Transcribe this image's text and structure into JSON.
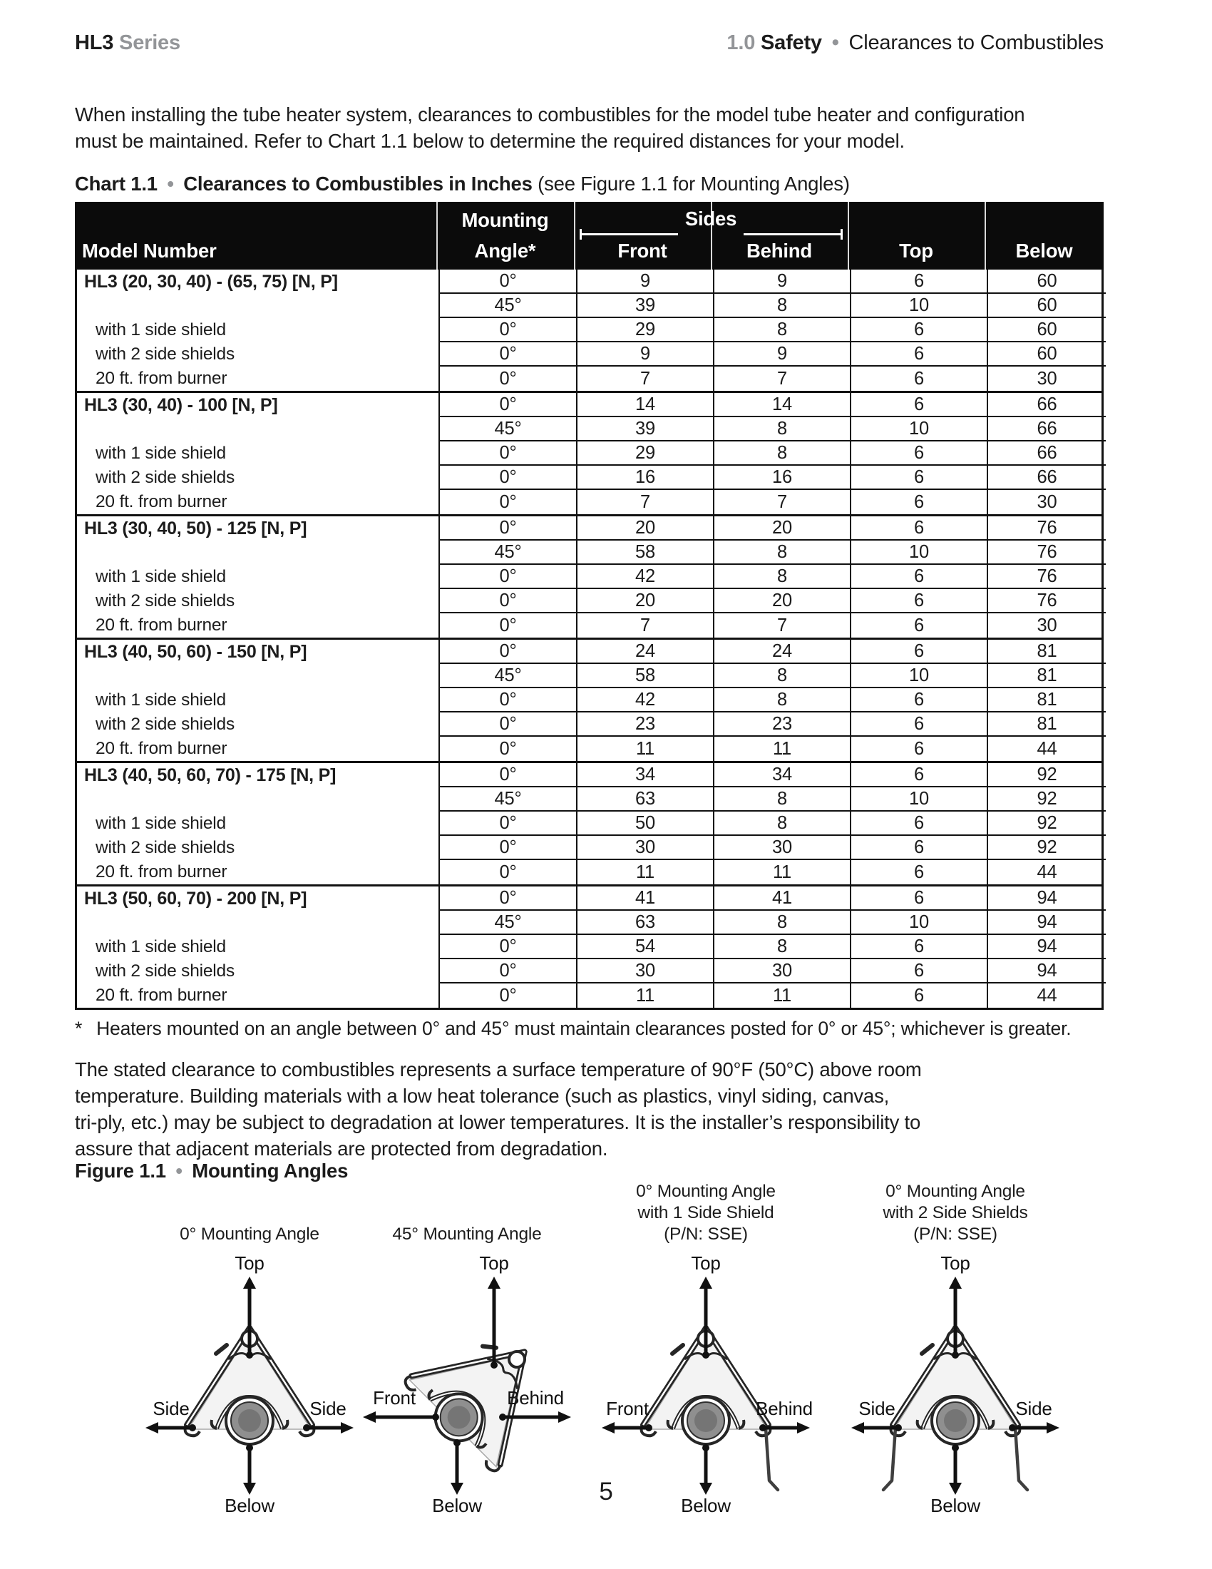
{
  "page": {
    "header_left_bold": "HL3",
    "header_left_gray": "Series",
    "header_right_num": "1.0",
    "header_right_bold": "Safety",
    "bullet": "•",
    "header_right_rest": "Clearances to Combustibles",
    "intro": "When installing the tube heater system, clearances to combustibles for the model tube heater and configuration\nmust be maintained. Refer to Chart 1.1 below to determine the required distances for your model.",
    "page_number": "5"
  },
  "chart": {
    "title_bold": "Chart 1.1",
    "title_bold2": "Clearances to Combustibles in Inches",
    "title_rest": "(see Figure 1.1 for Mounting Angles)",
    "footnote_star": "*",
    "footnote": "Heaters mounted on an angle between 0° and 45° must maintain clearances posted for 0° or 45°; whichever is greater."
  },
  "chart_data": {
    "type": "table",
    "columns": [
      "Model Number",
      "Mounting Angle*",
      "Front",
      "Behind",
      "Top",
      "Below"
    ],
    "header": {
      "model": "Model Number",
      "mounting_line1": "Mounting",
      "mounting_line2": "Angle*",
      "sides": "Sides",
      "front": "Front",
      "behind": "Behind",
      "top": "Top",
      "below": "Below"
    },
    "groups": [
      {
        "model": "HL3 (20, 30, 40) - (65, 75) [N, P]",
        "rows": [
          {
            "label": "",
            "angle": "0°",
            "front": "9",
            "behind": "9",
            "top": "6",
            "below": "60"
          },
          {
            "label": "",
            "angle": "45°",
            "front": "39",
            "behind": "8",
            "top": "10",
            "below": "60"
          },
          {
            "label": "with 1 side shield",
            "angle": "0°",
            "front": "29",
            "behind": "8",
            "top": "6",
            "below": "60"
          },
          {
            "label": "with 2 side shields",
            "angle": "0°",
            "front": "9",
            "behind": "9",
            "top": "6",
            "below": "60"
          },
          {
            "label": "20 ft. from burner",
            "angle": "0°",
            "front": "7",
            "behind": "7",
            "top": "6",
            "below": "30"
          }
        ]
      },
      {
        "model": "HL3 (30, 40) - 100 [N, P]",
        "rows": [
          {
            "label": "",
            "angle": "0°",
            "front": "14",
            "behind": "14",
            "top": "6",
            "below": "66"
          },
          {
            "label": "",
            "angle": "45°",
            "front": "39",
            "behind": "8",
            "top": "10",
            "below": "66"
          },
          {
            "label": "with 1 side shield",
            "angle": "0°",
            "front": "29",
            "behind": "8",
            "top": "6",
            "below": "66"
          },
          {
            "label": "with 2 side shields",
            "angle": "0°",
            "front": "16",
            "behind": "16",
            "top": "6",
            "below": "66"
          },
          {
            "label": "20 ft. from burner",
            "angle": "0°",
            "front": "7",
            "behind": "7",
            "top": "6",
            "below": "30"
          }
        ]
      },
      {
        "model": "HL3 (30, 40, 50) - 125 [N, P]",
        "rows": [
          {
            "label": "",
            "angle": "0°",
            "front": "20",
            "behind": "20",
            "top": "6",
            "below": "76"
          },
          {
            "label": "",
            "angle": "45°",
            "front": "58",
            "behind": "8",
            "top": "10",
            "below": "76"
          },
          {
            "label": "with 1 side shield",
            "angle": "0°",
            "front": "42",
            "behind": "8",
            "top": "6",
            "below": "76"
          },
          {
            "label": "with 2 side shields",
            "angle": "0°",
            "front": "20",
            "behind": "20",
            "top": "6",
            "below": "76"
          },
          {
            "label": "20 ft. from burner",
            "angle": "0°",
            "front": "7",
            "behind": "7",
            "top": "6",
            "below": "30"
          }
        ]
      },
      {
        "model": "HL3 (40, 50, 60) - 150 [N, P]",
        "rows": [
          {
            "label": "",
            "angle": "0°",
            "front": "24",
            "behind": "24",
            "top": "6",
            "below": "81"
          },
          {
            "label": "",
            "angle": "45°",
            "front": "58",
            "behind": "8",
            "top": "10",
            "below": "81"
          },
          {
            "label": "with 1 side shield",
            "angle": "0°",
            "front": "42",
            "behind": "8",
            "top": "6",
            "below": "81"
          },
          {
            "label": "with 2 side shields",
            "angle": "0°",
            "front": "23",
            "behind": "23",
            "top": "6",
            "below": "81"
          },
          {
            "label": "20 ft. from burner",
            "angle": "0°",
            "front": "11",
            "behind": "11",
            "top": "6",
            "below": "44"
          }
        ]
      },
      {
        "model": "HL3 (40, 50, 60, 70) - 175 [N, P]",
        "rows": [
          {
            "label": "",
            "angle": "0°",
            "front": "34",
            "behind": "34",
            "top": "6",
            "below": "92"
          },
          {
            "label": "",
            "angle": "45°",
            "front": "63",
            "behind": "8",
            "top": "10",
            "below": "92"
          },
          {
            "label": "with 1 side shield",
            "angle": "0°",
            "front": "50",
            "behind": "8",
            "top": "6",
            "below": "92"
          },
          {
            "label": "with 2 side shields",
            "angle": "0°",
            "front": "30",
            "behind": "30",
            "top": "6",
            "below": "92"
          },
          {
            "label": "20 ft. from burner",
            "angle": "0°",
            "front": "11",
            "behind": "11",
            "top": "6",
            "below": "44"
          }
        ]
      },
      {
        "model": "HL3 (50, 60, 70) - 200 [N, P]",
        "rows": [
          {
            "label": "",
            "angle": "0°",
            "front": "41",
            "behind": "41",
            "top": "6",
            "below": "94"
          },
          {
            "label": "",
            "angle": "45°",
            "front": "63",
            "behind": "8",
            "top": "10",
            "below": "94"
          },
          {
            "label": "with 1 side shield",
            "angle": "0°",
            "front": "54",
            "behind": "8",
            "top": "6",
            "below": "94"
          },
          {
            "label": "with 2 side shields",
            "angle": "0°",
            "front": "30",
            "behind": "30",
            "top": "6",
            "below": "94"
          },
          {
            "label": "20 ft. from burner",
            "angle": "0°",
            "front": "11",
            "behind": "11",
            "top": "6",
            "below": "44"
          }
        ]
      }
    ]
  },
  "body_text": {
    "paragraph": "The stated clearance to combustibles represents a surface temperature of 90°F (50°C) above room\ntemperature. Building materials with a low heat tolerance (such as plastics, vinyl siding, canvas,\ntri-ply, etc.) may be subject to degradation at lower temperatures. It is the installer’s responsibility to\nassure that adjacent materials are protected from degradation."
  },
  "figure": {
    "title_bold": "Figure 1.1",
    "title_bold2": "Mounting Angles",
    "diagrams": [
      {
        "caption": "0° Mounting Angle",
        "top": "Top",
        "left": "Side",
        "right": "Side",
        "below": "Below",
        "rotation": 0,
        "shields": 0
      },
      {
        "caption": "45° Mounting Angle",
        "top": "Top",
        "left": "Front",
        "right": "Behind",
        "below": "Below",
        "rotation": 45,
        "shields": 0
      },
      {
        "caption": "0° Mounting Angle\nwith 1 Side Shield\n(P/N: SSE)",
        "top": "Top",
        "left": "Front",
        "right": "Behind",
        "below": "Below",
        "rotation": 0,
        "shields": 1
      },
      {
        "caption": "0° Mounting Angle\nwith 2 Side Shields\n(P/N: SSE)",
        "top": "Top",
        "left": "Side",
        "right": "Side",
        "below": "Below",
        "rotation": 0,
        "shields": 2
      }
    ]
  },
  "colors": {
    "text": "#1c1c1c",
    "gray": "#939598",
    "table_header_bg": "#0b0b0b",
    "table_border": "#111111"
  }
}
